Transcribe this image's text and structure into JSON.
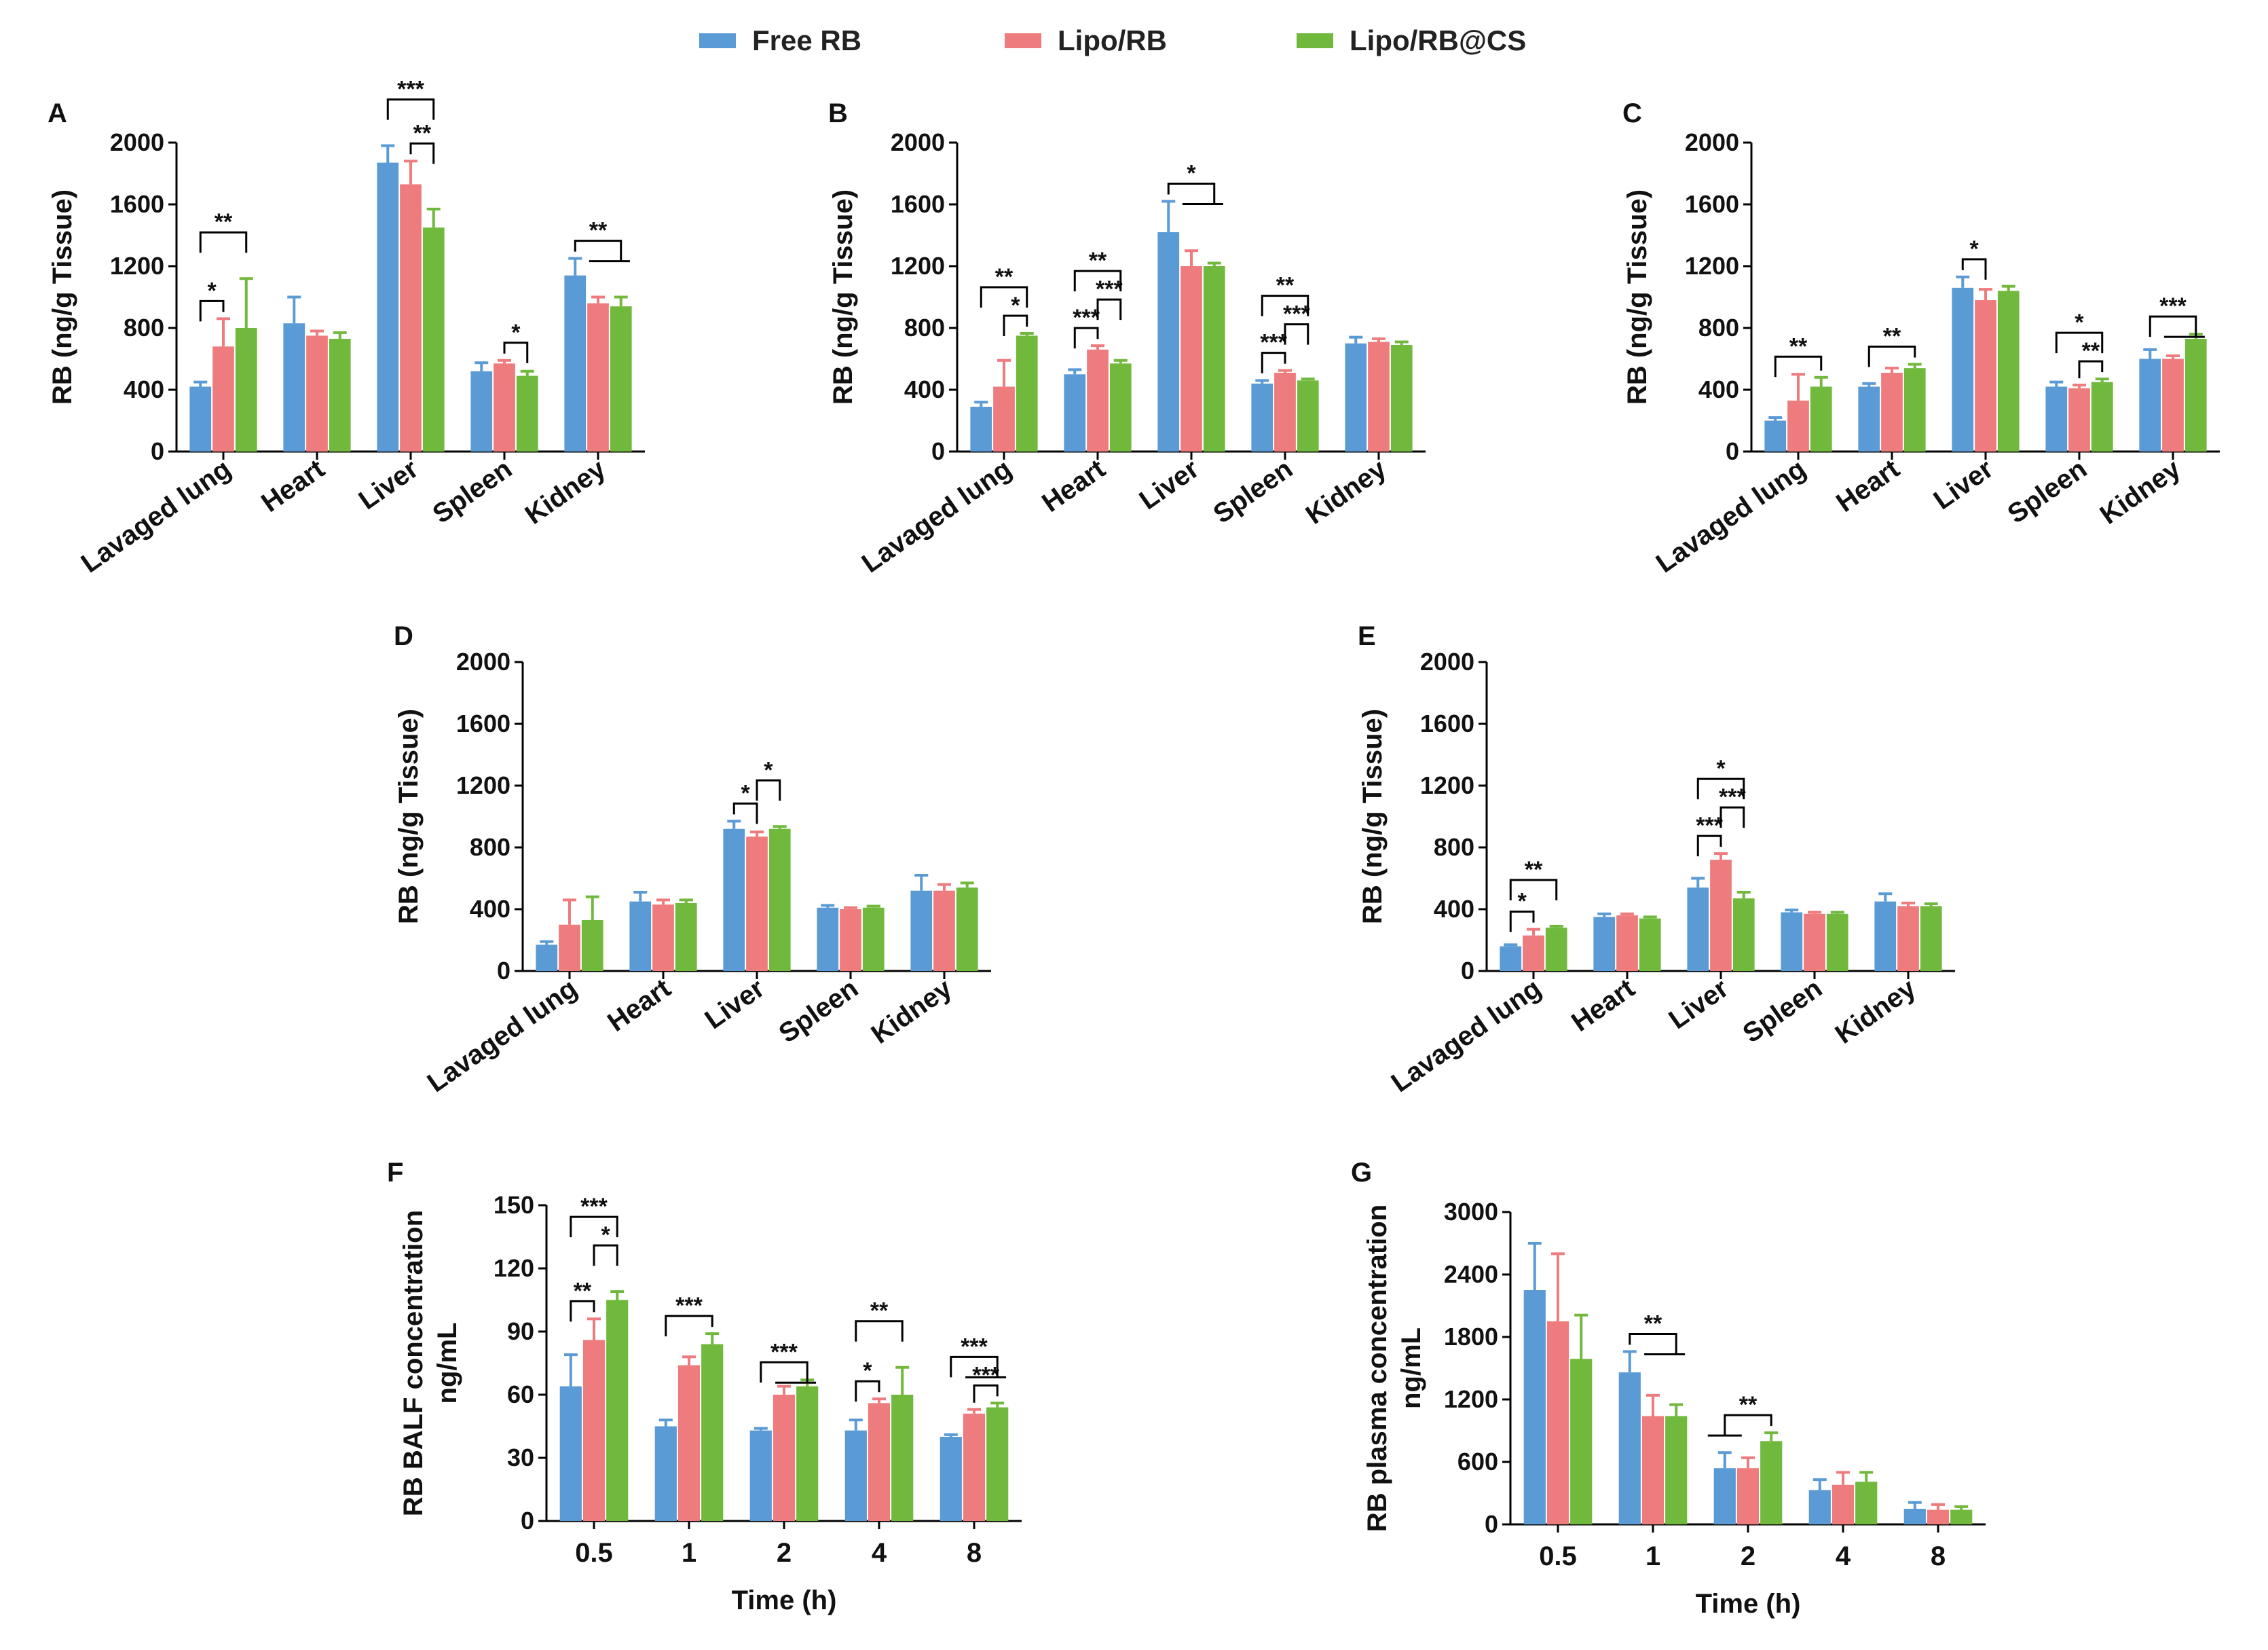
{
  "legend": {
    "items": [
      {
        "name": "Free RB",
        "color": "#5b9bd5"
      },
      {
        "name": "Lipo/RB",
        "color": "#ee7b7d"
      },
      {
        "name": "Lipo/RB@CS",
        "color": "#70b93d"
      }
    ]
  },
  "chart_data": [
    {
      "panel": "A",
      "type": "bar",
      "categories": [
        "Lavaged lung",
        "Heart",
        "Liver",
        "Spleen",
        "Kidney"
      ],
      "ylabel": "RB (ng/g Tissue)",
      "xlabel": "",
      "ylim": [
        0,
        2000
      ],
      "yticks": [
        0,
        400,
        800,
        1200,
        1600,
        2000
      ],
      "series": [
        {
          "name": "Free RB",
          "values": [
            420,
            830,
            1870,
            520,
            1140
          ],
          "errors": [
            30,
            170,
            110,
            55,
            110
          ]
        },
        {
          "name": "Lipo/RB",
          "values": [
            680,
            750,
            1730,
            570,
            960
          ],
          "errors": [
            180,
            30,
            150,
            20,
            40
          ]
        },
        {
          "name": "Lipo/RB@CS",
          "values": [
            800,
            730,
            1450,
            490,
            940
          ],
          "errors": [
            320,
            40,
            120,
            30,
            60
          ]
        }
      ],
      "annotations": [
        {
          "type": "bracket",
          "cat": 0,
          "from": 0,
          "to": 1,
          "level": 1,
          "label": "*"
        },
        {
          "type": "bracket",
          "cat": 0,
          "from": 0,
          "to": 2,
          "level": 2,
          "label": "**"
        },
        {
          "type": "bracket",
          "cat": 2,
          "from": 1,
          "to": 2,
          "level": 1,
          "label": "**"
        },
        {
          "type": "bracket",
          "cat": 2,
          "from": 0,
          "to": 2,
          "level": 2,
          "label": "***"
        },
        {
          "type": "bracket",
          "cat": 3,
          "from": 1,
          "to": 2,
          "level": 1,
          "label": "*"
        },
        {
          "type": "bracket",
          "cat": 4,
          "from": 0,
          "to": 2,
          "level": 1,
          "label": "**",
          "tee": true
        }
      ]
    },
    {
      "panel": "B",
      "type": "bar",
      "categories": [
        "Lavaged lung",
        "Heart",
        "Liver",
        "Spleen",
        "Kidney"
      ],
      "ylabel": "RB (ng/g Tissue)",
      "xlabel": "",
      "ylim": [
        0,
        2000
      ],
      "yticks": [
        0,
        400,
        800,
        1200,
        1600,
        2000
      ],
      "series": [
        {
          "name": "Free RB",
          "values": [
            290,
            500,
            1420,
            440,
            700
          ],
          "errors": [
            30,
            30,
            200,
            20,
            40
          ]
        },
        {
          "name": "Lipo/RB",
          "values": [
            420,
            660,
            1200,
            510,
            710
          ],
          "errors": [
            170,
            25,
            100,
            15,
            20
          ]
        },
        {
          "name": "Lipo/RB@CS",
          "values": [
            750,
            570,
            1200,
            460,
            690
          ],
          "errors": [
            15,
            20,
            20,
            10,
            20
          ]
        }
      ],
      "annotations": [
        {
          "type": "bracket",
          "cat": 0,
          "from": 1,
          "to": 2,
          "level": 1,
          "label": "*"
        },
        {
          "type": "bracket",
          "cat": 0,
          "from": 0,
          "to": 2,
          "level": 2,
          "label": "**"
        },
        {
          "type": "bracket",
          "cat": 1,
          "from": 0,
          "to": 1,
          "level": 1,
          "label": "***"
        },
        {
          "type": "bracket",
          "cat": 1,
          "from": 1,
          "to": 2,
          "level": 2,
          "label": "***"
        },
        {
          "type": "bracket",
          "cat": 1,
          "from": 0,
          "to": 2,
          "level": 3,
          "label": "**"
        },
        {
          "type": "bracket",
          "cat": 2,
          "from": 0,
          "to": 2,
          "level": 1,
          "label": "*",
          "tee": true
        },
        {
          "type": "bracket",
          "cat": 3,
          "from": 0,
          "to": 1,
          "level": 1,
          "label": "***"
        },
        {
          "type": "bracket",
          "cat": 3,
          "from": 1,
          "to": 2,
          "level": 2,
          "label": "***"
        },
        {
          "type": "bracket",
          "cat": 3,
          "from": 0,
          "to": 2,
          "level": 3,
          "label": "**"
        }
      ]
    },
    {
      "panel": "C",
      "type": "bar",
      "categories": [
        "Lavaged lung",
        "Heart",
        "Liver",
        "Spleen",
        "Kidney"
      ],
      "ylabel": "RB (ng/g Tissue)",
      "xlabel": "",
      "ylim": [
        0,
        2000
      ],
      "yticks": [
        0,
        400,
        800,
        1200,
        1600,
        2000
      ],
      "series": [
        {
          "name": "Free RB",
          "values": [
            200,
            420,
            1060,
            420,
            600
          ],
          "errors": [
            20,
            20,
            70,
            30,
            60
          ]
        },
        {
          "name": "Lipo/RB",
          "values": [
            330,
            510,
            980,
            410,
            600
          ],
          "errors": [
            170,
            30,
            70,
            20,
            20
          ]
        },
        {
          "name": "Lipo/RB@CS",
          "values": [
            420,
            540,
            1040,
            450,
            730
          ],
          "errors": [
            60,
            25,
            30,
            20,
            30
          ]
        }
      ],
      "annotations": [
        {
          "type": "bracket",
          "cat": 0,
          "from": 0,
          "to": 2,
          "level": 1,
          "label": "**"
        },
        {
          "type": "bracket",
          "cat": 1,
          "from": 0,
          "to": 2,
          "level": 1,
          "label": "**"
        },
        {
          "type": "bracket",
          "cat": 2,
          "from": 0,
          "to": 1,
          "level": 1,
          "label": "*"
        },
        {
          "type": "bracket",
          "cat": 3,
          "from": 1,
          "to": 2,
          "level": 1,
          "label": "**"
        },
        {
          "type": "bracket",
          "cat": 3,
          "from": 0,
          "to": 2,
          "level": 2,
          "label": "*"
        },
        {
          "type": "bracket",
          "cat": 4,
          "from": 0,
          "to": 2,
          "level": 1,
          "label": "***",
          "tee": true
        }
      ]
    },
    {
      "panel": "D",
      "type": "bar",
      "categories": [
        "Lavaged lung",
        "Heart",
        "Liver",
        "Spleen",
        "Kidney"
      ],
      "ylabel": "RB (ng/g Tissue)",
      "xlabel": "",
      "ylim": [
        0,
        2000
      ],
      "yticks": [
        0,
        400,
        800,
        1200,
        1600,
        2000
      ],
      "series": [
        {
          "name": "Free RB",
          "values": [
            170,
            450,
            920,
            410,
            520
          ],
          "errors": [
            20,
            60,
            50,
            15,
            100
          ]
        },
        {
          "name": "Lipo/RB",
          "values": [
            300,
            430,
            870,
            400,
            520
          ],
          "errors": [
            160,
            30,
            30,
            10,
            40
          ]
        },
        {
          "name": "Lipo/RB@CS",
          "values": [
            330,
            440,
            920,
            410,
            540
          ],
          "errors": [
            150,
            20,
            15,
            10,
            30
          ]
        }
      ],
      "annotations": [
        {
          "type": "bracket",
          "cat": 2,
          "from": 0,
          "to": 1,
          "level": 1,
          "label": "*"
        },
        {
          "type": "bracket",
          "cat": 2,
          "from": 1,
          "to": 2,
          "level": 2,
          "label": "*"
        }
      ]
    },
    {
      "panel": "E",
      "type": "bar",
      "categories": [
        "Lavaged lung",
        "Heart",
        "Liver",
        "Spleen",
        "Kidney"
      ],
      "ylabel": "RB (ng/g Tissue)",
      "xlabel": "",
      "ylim": [
        0,
        2000
      ],
      "yticks": [
        0,
        400,
        800,
        1200,
        1600,
        2000
      ],
      "series": [
        {
          "name": "Free RB",
          "values": [
            160,
            350,
            540,
            380,
            450
          ],
          "errors": [
            10,
            20,
            60,
            15,
            50
          ]
        },
        {
          "name": "Lipo/RB",
          "values": [
            230,
            360,
            720,
            370,
            420
          ],
          "errors": [
            40,
            10,
            40,
            10,
            20
          ]
        },
        {
          "name": "Lipo/RB@CS",
          "values": [
            280,
            340,
            470,
            370,
            420
          ],
          "errors": [
            10,
            10,
            40,
            10,
            15
          ]
        }
      ],
      "annotations": [
        {
          "type": "bracket",
          "cat": 0,
          "from": 0,
          "to": 1,
          "level": 1,
          "label": "*"
        },
        {
          "type": "bracket",
          "cat": 0,
          "from": 0,
          "to": 2,
          "level": 2,
          "label": "**"
        },
        {
          "type": "bracket",
          "cat": 2,
          "from": 0,
          "to": 1,
          "level": 1,
          "label": "***"
        },
        {
          "type": "bracket",
          "cat": 2,
          "from": 1,
          "to": 2,
          "level": 2,
          "label": "***"
        },
        {
          "type": "bracket",
          "cat": 2,
          "from": 0,
          "to": 2,
          "level": 3,
          "label": "*"
        }
      ]
    },
    {
      "panel": "F",
      "type": "bar",
      "categories": [
        "0.5",
        "1",
        "2",
        "4",
        "8"
      ],
      "ylabel": "RB BALF concentration",
      "ylabel2": "ng/mL",
      "xlabel": "Time (h)",
      "ylim": [
        0,
        150
      ],
      "yticks": [
        0,
        30,
        60,
        90,
        120,
        150
      ],
      "series": [
        {
          "name": "Free RB",
          "values": [
            64,
            45,
            43,
            43,
            40
          ],
          "errors": [
            15,
            3,
            1,
            5,
            1
          ]
        },
        {
          "name": "Lipo/RB",
          "values": [
            86,
            74,
            60,
            56,
            51
          ],
          "errors": [
            10,
            4,
            4,
            2,
            2
          ]
        },
        {
          "name": "Lipo/RB@CS",
          "values": [
            105,
            84,
            64,
            60,
            54
          ],
          "errors": [
            4,
            5,
            3,
            13,
            2
          ]
        }
      ],
      "annotations": [
        {
          "type": "bracket",
          "cat": 0,
          "from": 0,
          "to": 1,
          "level": 1,
          "label": "**"
        },
        {
          "type": "bracket",
          "cat": 0,
          "from": 1,
          "to": 2,
          "level": 2,
          "label": "*"
        },
        {
          "type": "bracket",
          "cat": 0,
          "from": 0,
          "to": 2,
          "level": 3,
          "label": "***"
        },
        {
          "type": "bracket",
          "cat": 1,
          "from": 0,
          "to": 2,
          "level": 1,
          "label": "***"
        },
        {
          "type": "bracket",
          "cat": 2,
          "from": 0,
          "to": 2,
          "level": 1,
          "label": "***",
          "tee": true
        },
        {
          "type": "bracket",
          "cat": 3,
          "from": 0,
          "to": 1,
          "level": 1,
          "label": "*"
        },
        {
          "type": "bracket",
          "cat": 3,
          "from": 0,
          "to": 2,
          "level": 2,
          "label": "**"
        },
        {
          "type": "bracket",
          "cat": 4,
          "from": 1,
          "to": 2,
          "level": 1,
          "label": "***"
        },
        {
          "type": "bracket",
          "cat": 4,
          "from": 0,
          "to": 2,
          "level": 2,
          "label": "***",
          "tee": true
        }
      ]
    },
    {
      "panel": "G",
      "type": "bar",
      "categories": [
        "0.5",
        "1",
        "2",
        "4",
        "8"
      ],
      "ylabel": "RB plasma concentration",
      "ylabel2": "ng/mL",
      "xlabel": "Time (h)",
      "ylim": [
        0,
        3000
      ],
      "yticks": [
        0,
        600,
        1200,
        1800,
        2400,
        3000
      ],
      "series": [
        {
          "name": "Free RB",
          "values": [
            2250,
            1460,
            540,
            330,
            150
          ],
          "errors": [
            450,
            200,
            150,
            100,
            60
          ]
        },
        {
          "name": "Lipo/RB",
          "values": [
            1950,
            1040,
            540,
            380,
            140
          ],
          "errors": [
            650,
            200,
            100,
            120,
            50
          ]
        },
        {
          "name": "Lipo/RB@CS",
          "values": [
            1590,
            1040,
            800,
            410,
            140
          ],
          "errors": [
            420,
            110,
            80,
            90,
            30
          ]
        }
      ],
      "annotations": [
        {
          "type": "bracket",
          "cat": 1,
          "from": 0,
          "to": 2,
          "level": 1,
          "label": "**",
          "tee": true
        },
        {
          "type": "bracket",
          "cat": 2,
          "from": 0,
          "to": 2,
          "level": 1,
          "label": "**",
          "tee": true,
          "teeLeft": true
        }
      ]
    }
  ]
}
